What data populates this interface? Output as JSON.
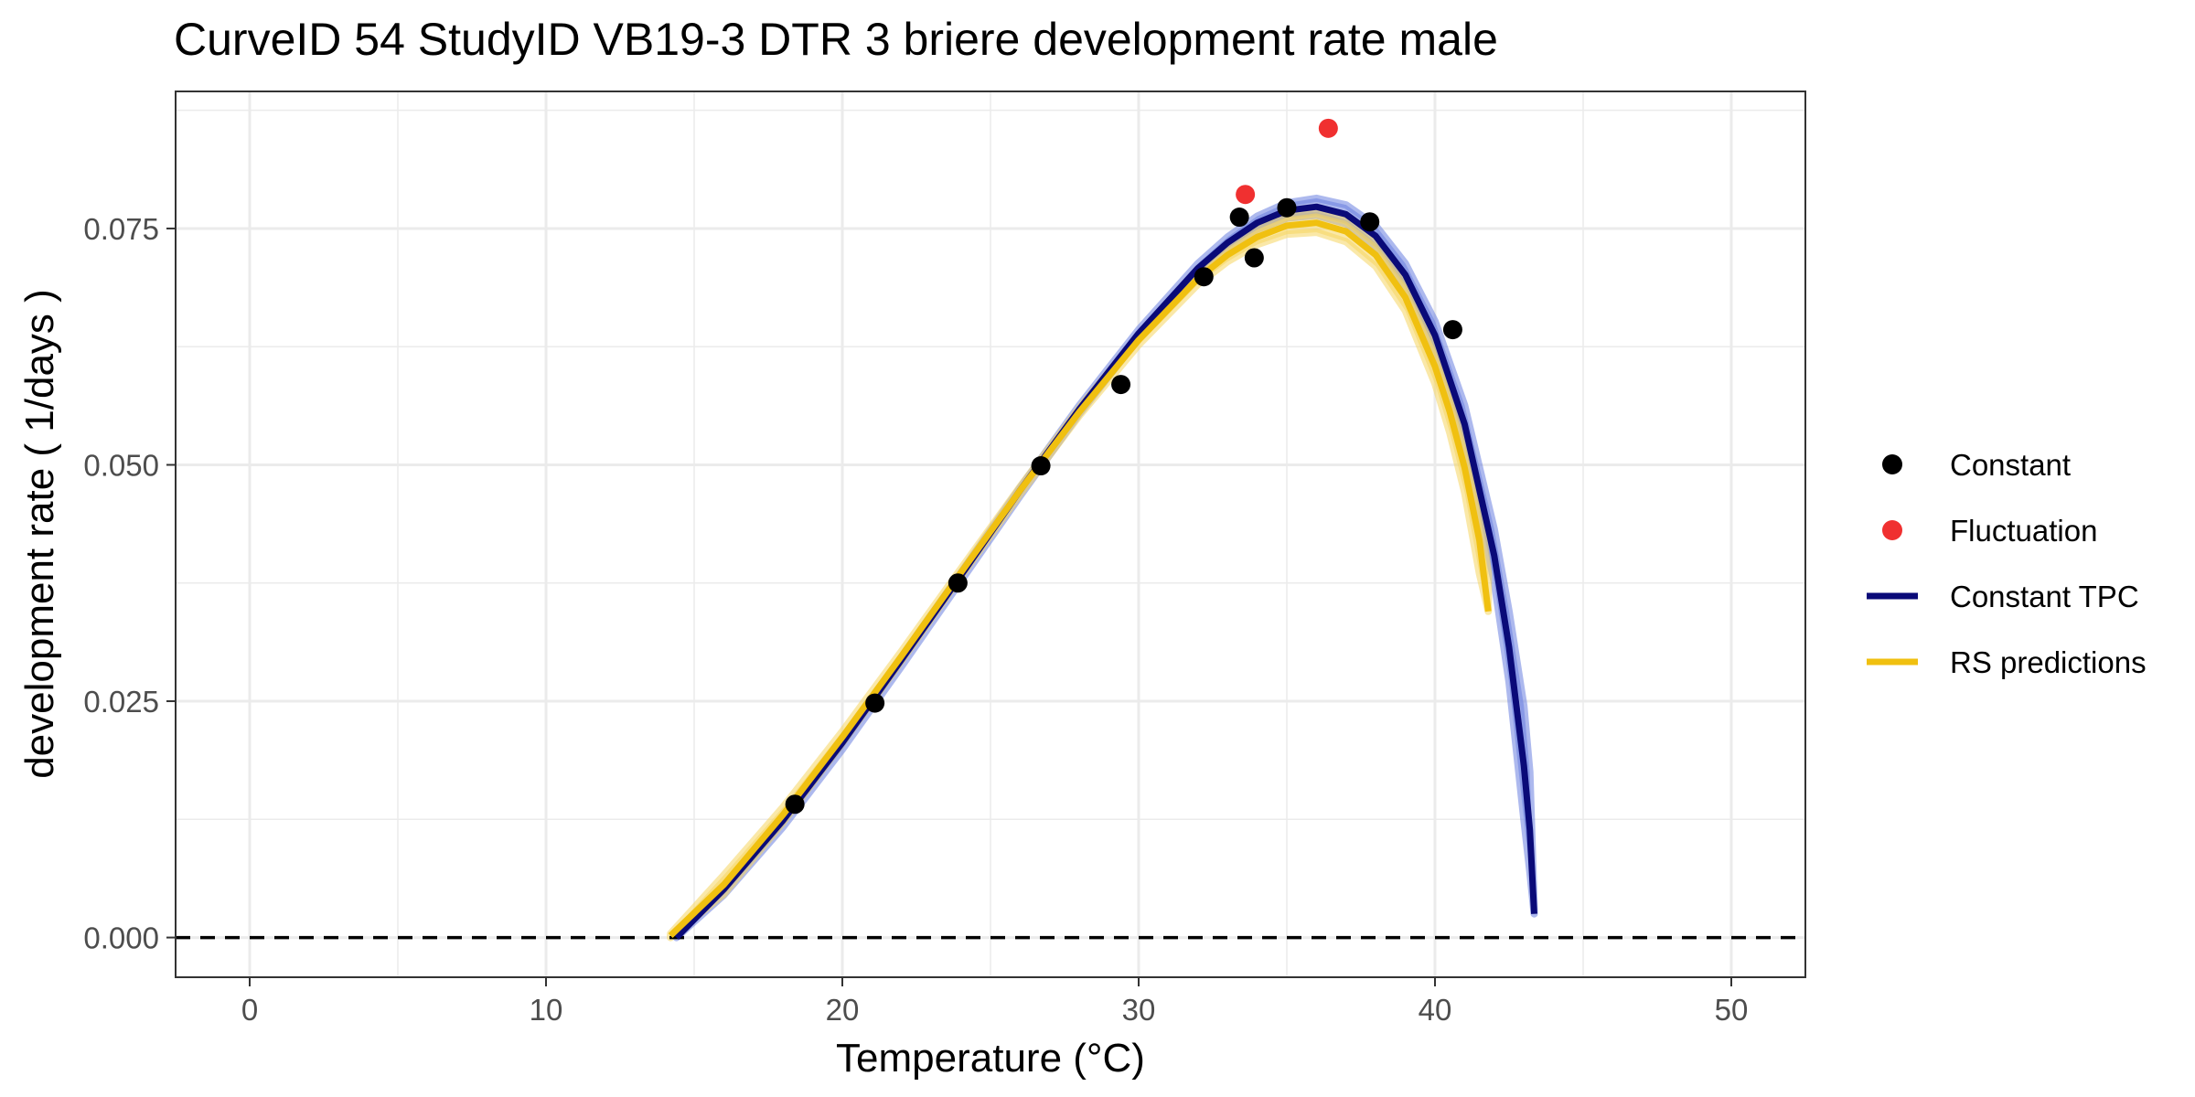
{
  "chart_data": {
    "type": "scatter",
    "title": "CurveID 54 StudyID VB19-3 DTR 3 briere development rate male",
    "xlabel": "Temperature (°C)",
    "ylabel": "development rate ( 1/days )",
    "xlim": [
      -2.5,
      52.5
    ],
    "ylim": [
      -0.0042,
      0.0895
    ],
    "x_ticks": [
      0,
      10,
      20,
      30,
      40,
      50
    ],
    "x_tick_labels": [
      "0",
      "10",
      "20",
      "30",
      "40",
      "50"
    ],
    "y_ticks": [
      0,
      0.025,
      0.05,
      0.075
    ],
    "y_tick_labels": [
      "0.000",
      "0.025",
      "0.050",
      "0.075"
    ],
    "grid": true,
    "legend_position": "right",
    "reference_line": {
      "y": 0,
      "style": "dashed",
      "color": "#000000"
    },
    "series": [
      {
        "name": "Constant",
        "kind": "points",
        "color": "#000000",
        "x": [
          18.4,
          21.1,
          23.9,
          26.7,
          29.4,
          32.2,
          33.4,
          33.9,
          35.0,
          37.8,
          40.6
        ],
        "y": [
          0.0141,
          0.0248,
          0.0375,
          0.0499,
          0.0585,
          0.0699,
          0.0762,
          0.0719,
          0.0772,
          0.0757,
          0.0643
        ]
      },
      {
        "name": "Fluctuation",
        "kind": "points",
        "color": "#f03030",
        "x": [
          33.6,
          36.4
        ],
        "y": [
          0.0786,
          0.0856
        ]
      },
      {
        "name": "Constant TPC",
        "kind": "line",
        "color": "#0a0a78",
        "band_color": "#6a80e0",
        "x": [
          14.4,
          16,
          18,
          20,
          22,
          24,
          26,
          28,
          30,
          32,
          33,
          34,
          35,
          36,
          37,
          38,
          39,
          40,
          41,
          42,
          42.5,
          43,
          43.2,
          43.35
        ],
        "y": [
          0.0,
          0.0051,
          0.0124,
          0.0206,
          0.0294,
          0.0383,
          0.0473,
          0.0559,
          0.0639,
          0.0708,
          0.0735,
          0.0756,
          0.0769,
          0.0773,
          0.0765,
          0.0742,
          0.0701,
          0.0637,
          0.0543,
          0.0404,
          0.0307,
          0.0182,
          0.0114,
          0.0025
        ],
        "band_upper": [
          0.0,
          0.0053,
          0.0126,
          0.0209,
          0.0297,
          0.0386,
          0.0476,
          0.0563,
          0.0643,
          0.0713,
          0.0741,
          0.0763,
          0.0777,
          0.0782,
          0.0775,
          0.0753,
          0.0713,
          0.0652,
          0.0563,
          0.0432,
          0.0345,
          0.0245,
          0.0175,
          0.003
        ],
        "band_lower": [
          0.0,
          0.0045,
          0.0117,
          0.0199,
          0.0287,
          0.0377,
          0.0467,
          0.0554,
          0.0634,
          0.0702,
          0.0729,
          0.0749,
          0.0761,
          0.0764,
          0.0755,
          0.073,
          0.0688,
          0.0622,
          0.0523,
          0.0376,
          0.027,
          0.0125,
          0.007,
          0.0025
        ]
      },
      {
        "name": "RS predictions",
        "kind": "line",
        "color": "#f0c010",
        "band_color": "#f5d560",
        "x": [
          14.2,
          16,
          18,
          20,
          22,
          24,
          26,
          28,
          30,
          32,
          33,
          34,
          35,
          36,
          37,
          38,
          39,
          40,
          40.5,
          41,
          41.5,
          41.8
        ],
        "y": [
          0.0002,
          0.0056,
          0.013,
          0.0212,
          0.0298,
          0.0386,
          0.0473,
          0.0556,
          0.0632,
          0.0697,
          0.0722,
          0.0741,
          0.0753,
          0.0756,
          0.0747,
          0.0722,
          0.0677,
          0.0604,
          0.0556,
          0.0497,
          0.042,
          0.0345
        ],
        "band_upper": [
          0.0004,
          0.0066,
          0.0138,
          0.0218,
          0.0303,
          0.039,
          0.0477,
          0.056,
          0.0637,
          0.0703,
          0.0729,
          0.0749,
          0.0762,
          0.0766,
          0.0758,
          0.0734,
          0.0691,
          0.0622,
          0.0578,
          0.0523,
          0.0455,
          0.0385
        ],
        "band_lower": [
          0.0,
          0.0046,
          0.0122,
          0.0206,
          0.0293,
          0.0382,
          0.0469,
          0.0552,
          0.0627,
          0.0691,
          0.0715,
          0.0733,
          0.0744,
          0.0746,
          0.0736,
          0.071,
          0.0663,
          0.0586,
          0.0534,
          0.0471,
          0.0385,
          0.0345
        ]
      }
    ]
  }
}
